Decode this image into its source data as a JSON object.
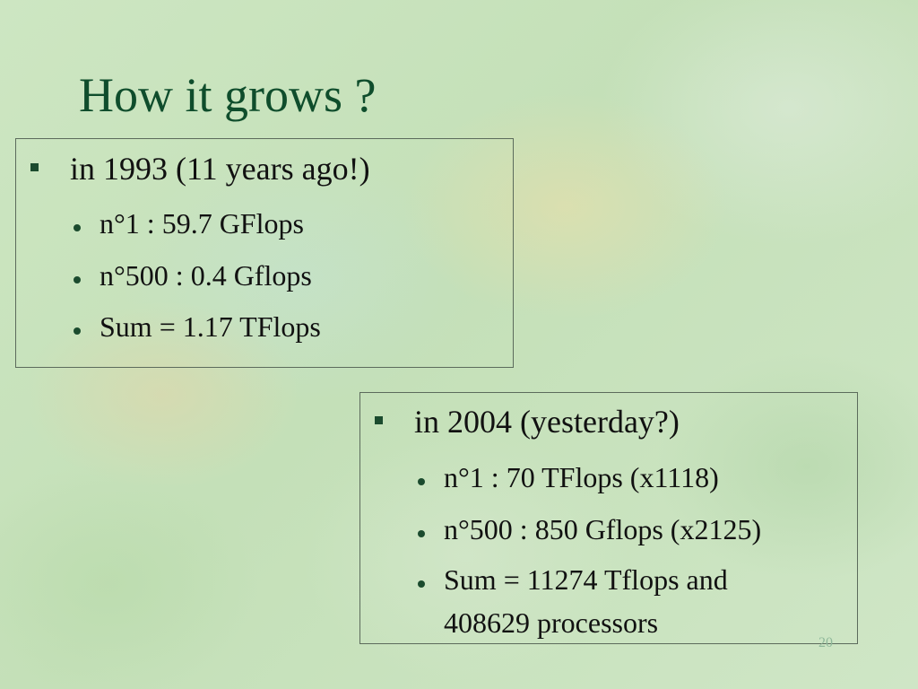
{
  "slide": {
    "title": "How it grows ?",
    "slide_number": "20"
  },
  "box_1993": {
    "heading": "in 1993 (11 years ago!)",
    "items": [
      "n°1 : 59.7 GFlops",
      "n°500 : 0.4 Gflops",
      "Sum = 1.17 TFlops"
    ]
  },
  "box_2004": {
    "heading": "in 2004 (yesterday?)",
    "items": [
      "n°1 : 70 TFlops (x1118)",
      "n°500 : 850 Gflops (x2125)",
      "Sum = 11274 Tflops and",
      "408629 processors"
    ]
  },
  "colors": {
    "title": "#0f4d2c",
    "bullet": "#1b4b2e",
    "text": "#111111",
    "border": "#5c6b5c",
    "background": "#c9e3bd"
  }
}
